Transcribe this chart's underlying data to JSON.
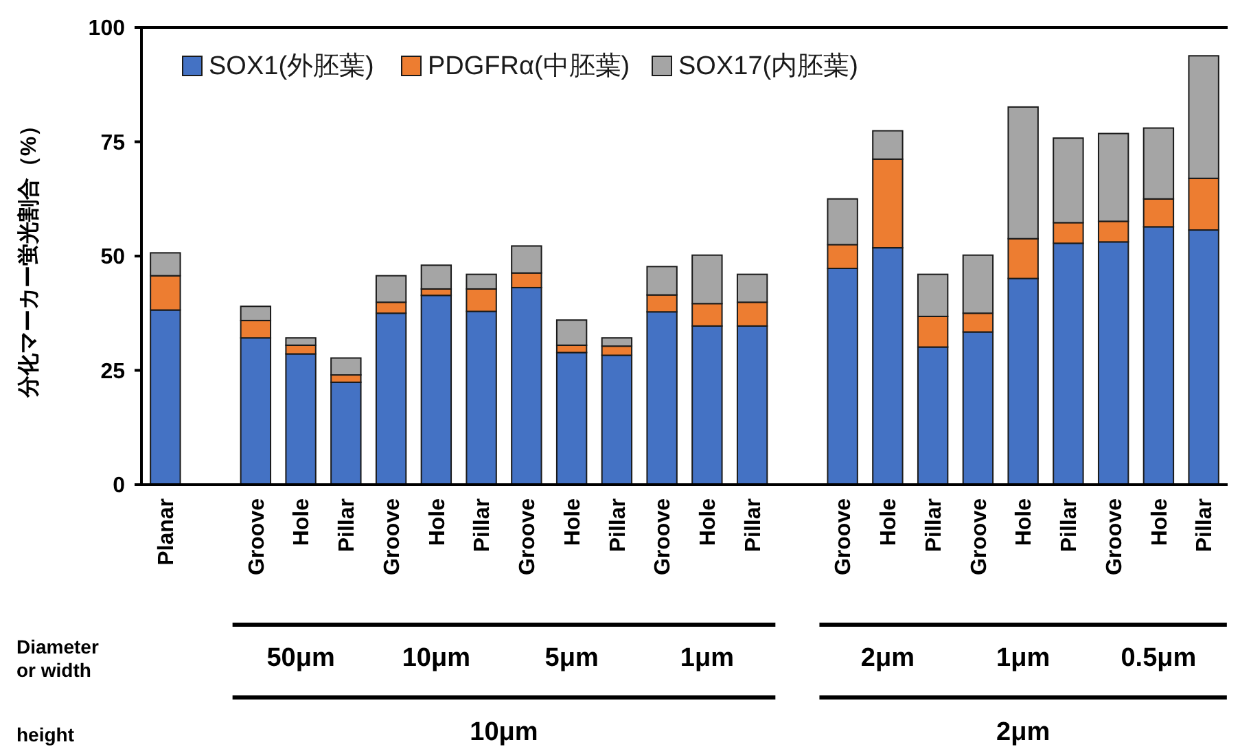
{
  "chart_data": {
    "type": "bar",
    "stacked": true,
    "ylabel": "分化マーカー蛍光割合（%）",
    "ylim": [
      0,
      100
    ],
    "yticks": [
      0,
      25,
      50,
      75,
      100
    ],
    "grid": false,
    "legend": "top left",
    "categories": [
      "Planar",
      null,
      "Groove",
      "Hole",
      "Pillar",
      "Groove",
      "Hole",
      "Pillar",
      "Groove",
      "Hole",
      "Pillar",
      "Groove",
      "Hole",
      "Pillar",
      null,
      "Groove",
      "Hole",
      "Pillar",
      "Groove",
      "Hole",
      "Pillar",
      "Groove",
      "Hole",
      "Pillar"
    ],
    "series": [
      {
        "name": "SOX1(外胚葉)",
        "color": "#4472c4",
        "values": [
          38.2,
          null,
          32.1,
          28.6,
          22.4,
          37.5,
          41.4,
          37.9,
          43.1,
          28.9,
          28.3,
          37.8,
          34.7,
          34.7,
          null,
          47.3,
          51.8,
          30.1,
          33.4,
          45.1,
          52.8,
          53.1,
          56.4,
          55.7
        ]
      },
      {
        "name": "PDGFRα(中胚葉)",
        "color": "#ed7d31",
        "values": [
          7.5,
          null,
          3.8,
          1.9,
          1.6,
          2.4,
          1.4,
          4.9,
          3.2,
          1.6,
          2.0,
          3.7,
          4.9,
          5.2,
          null,
          5.2,
          19.4,
          6.7,
          4.1,
          8.7,
          4.5,
          4.5,
          6.1,
          11.3
        ]
      },
      {
        "name": "SOX17(内胚葉)",
        "color": "#a5a5a5",
        "values": [
          5.0,
          null,
          3.1,
          1.6,
          3.7,
          5.8,
          5.2,
          3.2,
          5.9,
          5.5,
          1.8,
          6.2,
          10.6,
          6.1,
          null,
          10.0,
          6.2,
          9.2,
          12.7,
          28.8,
          18.5,
          19.2,
          15.5,
          26.8
        ]
      }
    ],
    "annotations": [
      "Diameter\nor width",
      "height",
      "50μm",
      "10μm",
      "5μm",
      "1μm",
      "2μm",
      "1μm",
      "0.5μm",
      "10μm",
      "2μm"
    ]
  }
}
